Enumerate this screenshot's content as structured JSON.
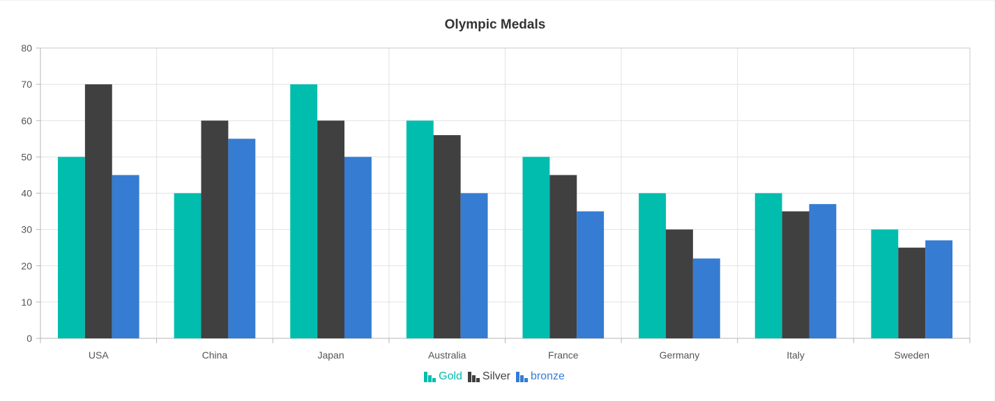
{
  "chart_data": {
    "type": "bar",
    "title": "Olympic Medals",
    "xlabel": "",
    "ylabel": "",
    "categories": [
      "USA",
      "China",
      "Japan",
      "Australia",
      "France",
      "Germany",
      "Italy",
      "Sweden"
    ],
    "series": [
      {
        "name": "Gold",
        "color": "#00bdae",
        "values": [
          50,
          40,
          70,
          60,
          50,
          40,
          40,
          30
        ]
      },
      {
        "name": "Silver",
        "color": "#404041",
        "values": [
          70,
          60,
          60,
          56,
          45,
          30,
          35,
          25
        ]
      },
      {
        "name": "bronze",
        "color": "#357cd2",
        "values": [
          45,
          55,
          50,
          40,
          35,
          22,
          37,
          27
        ]
      }
    ],
    "ylim": [
      0,
      80
    ],
    "yticks": [
      0,
      10,
      20,
      30,
      40,
      50,
      60,
      70,
      80
    ],
    "grid": true,
    "legend_position": "bottom-center"
  }
}
